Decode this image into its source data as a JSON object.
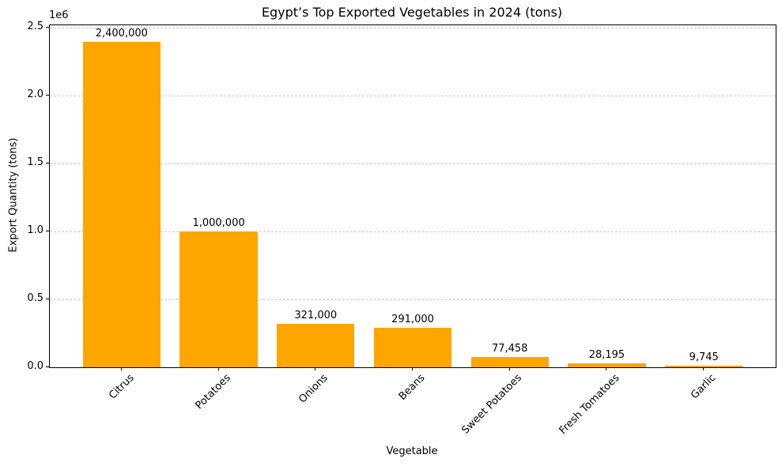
{
  "chart_data": {
    "type": "bar",
    "title": "Egypt’s Top Exported Vegetables in 2024 (tons)",
    "xlabel": "Vegetable",
    "ylabel": "Export Quantity (tons)",
    "categories": [
      "Citrus",
      "Potatoes",
      "Onions",
      "Beans",
      "Sweet Potatoes",
      "Fresh Tomatoes",
      "Garlic"
    ],
    "values": [
      2400000,
      1000000,
      321000,
      291000,
      77458,
      28195,
      9745
    ],
    "bar_labels": [
      "2,400,000",
      "1,000,000",
      "321,000",
      "291,000",
      "77,458",
      "28,195",
      "9,745"
    ],
    "bar_color": "#FFA500",
    "ylim": [
      0,
      2520000
    ],
    "yticks": [
      0,
      500000,
      1000000,
      1500000,
      2000000,
      2500000
    ],
    "ytick_labels": [
      "0.0",
      "0.5",
      "1.0",
      "1.5",
      "2.0",
      "2.5"
    ],
    "y_offset_label": "1e6",
    "xtick_rotation_deg": 45,
    "grid": "horizontal-dashed",
    "gridline_color": "#c9c9c9",
    "legend": "none"
  }
}
